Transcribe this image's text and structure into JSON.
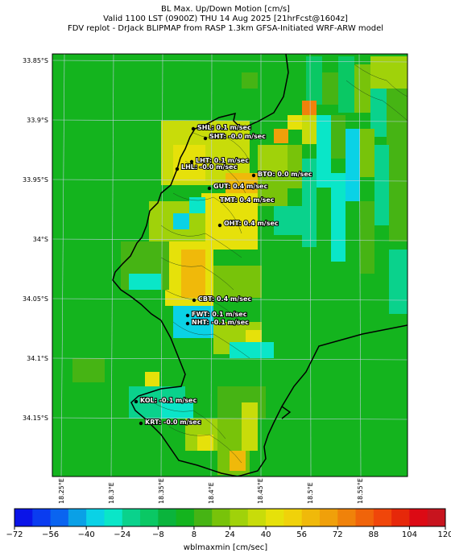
{
  "title": {
    "line1": "BL Max. Up/Down Motion [cm/s]",
    "line2": "Valid 1100 LST (0900Z) THU 14 Aug 2025 [21hrFcst@1604z]",
    "line3": "FDV replot - DrJack BLIPMAP from RASP 1.3km GFSA-Initiated WRF-ARW model"
  },
  "lat_labels": [
    "33.85°S",
    "33.9°S",
    "33.95°S",
    "34°S",
    "34.05°S",
    "34.1°S",
    "34.15°S"
  ],
  "lon_labels": [
    "18.25°E",
    "18.3°E",
    "18.35°E",
    "18.4°E",
    "18.45°E",
    "18.5°E",
    "18.55°E"
  ],
  "stations": [
    {
      "label": "SHL: 0.1 m/sec"
    },
    {
      "label": "SHT: -0.0 m/sec"
    },
    {
      "label": "LHT: 0.1 m/sec"
    },
    {
      "label": "LHL: -0.0 m/sec"
    },
    {
      "label": "BTO: 0.0 m/sec"
    },
    {
      "label": "GUT: 0.4 m/sec"
    },
    {
      "label": "TMT: 0.4 m/sec"
    },
    {
      "label": "OHT: 0.4 m/sec"
    },
    {
      "label": "CBT: 0.4 m/sec"
    },
    {
      "label": "FWT: 0.1 m/sec"
    },
    {
      "label": "NHT: -0.1 m/sec"
    },
    {
      "label": "KOL: -0.1 m/sec"
    },
    {
      "label": "KRT: -0.0 m/sec"
    }
  ],
  "colorbar": {
    "ticks": [
      "−72",
      "−56",
      "−40",
      "−24",
      "−8",
      "8",
      "24",
      "40",
      "56",
      "72",
      "88",
      "104",
      "120"
    ],
    "colors": [
      "#0a14e8",
      "#0a3cf0",
      "#0a64f0",
      "#0aa0e6",
      "#0ad2e6",
      "#0ae6c8",
      "#0ad28c",
      "#0ac864",
      "#0ab43c",
      "#14b41e",
      "#46b414",
      "#78c30a",
      "#a0d20a",
      "#c8dc0a",
      "#e6e10a",
      "#f0d20a",
      "#f0b90a",
      "#f0a00a",
      "#f0820a",
      "#f0640a",
      "#f0460a",
      "#e6280a",
      "#dc0a14",
      "#c8141e"
    ],
    "label": "wblmaxmin [cm/sec]"
  }
}
